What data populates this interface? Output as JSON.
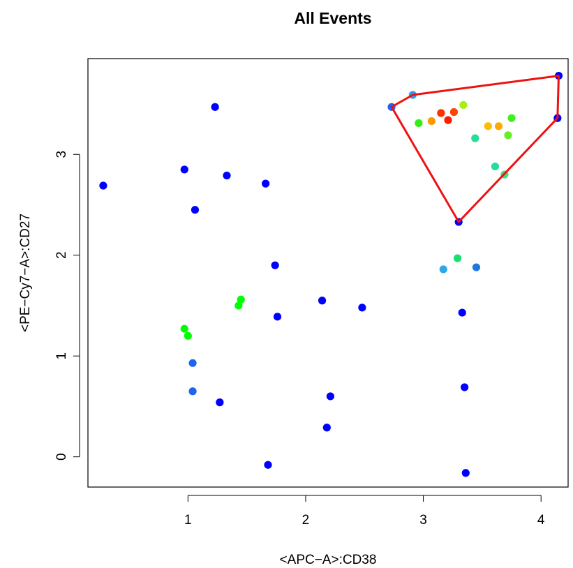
{
  "chart_data": {
    "type": "scatter",
    "title": "All Events",
    "xlabel": "<APC−A>:CD38",
    "ylabel": "<PE−Cy7−A>:CD27",
    "xlim": [
      0.15,
      4.23
    ],
    "ylim": [
      -0.3,
      3.95
    ],
    "xticks": [
      1,
      2,
      3,
      4
    ],
    "yticks": [
      0,
      1,
      2,
      3
    ],
    "grid": false,
    "legend": "none",
    "points": [
      {
        "x": 0.28,
        "y": 2.69,
        "color": "#0000ff"
      },
      {
        "x": 0.97,
        "y": 2.85,
        "color": "#0000ff"
      },
      {
        "x": 1.06,
        "y": 2.45,
        "color": "#0000ff"
      },
      {
        "x": 1.23,
        "y": 3.47,
        "color": "#0000ff"
      },
      {
        "x": 1.33,
        "y": 2.79,
        "color": "#0000ff"
      },
      {
        "x": 1.66,
        "y": 2.71,
        "color": "#0000ff"
      },
      {
        "x": 1.74,
        "y": 1.9,
        "color": "#0000ff"
      },
      {
        "x": 1.76,
        "y": 1.39,
        "color": "#0000ff"
      },
      {
        "x": 2.14,
        "y": 1.55,
        "color": "#0000ff"
      },
      {
        "x": 2.48,
        "y": 1.48,
        "color": "#0000ff"
      },
      {
        "x": 0.97,
        "y": 1.27,
        "color": "#00ff00"
      },
      {
        "x": 1.0,
        "y": 1.2,
        "color": "#00ff00"
      },
      {
        "x": 1.43,
        "y": 1.5,
        "color": "#00ff00"
      },
      {
        "x": 1.45,
        "y": 1.56,
        "color": "#00ff00"
      },
      {
        "x": 1.04,
        "y": 0.93,
        "color": "#1e64ee"
      },
      {
        "x": 1.04,
        "y": 0.65,
        "color": "#1e64ee"
      },
      {
        "x": 1.27,
        "y": 0.54,
        "color": "#0000ff"
      },
      {
        "x": 1.68,
        "y": -0.08,
        "color": "#0000ff"
      },
      {
        "x": 2.18,
        "y": 0.29,
        "color": "#0000ff"
      },
      {
        "x": 2.21,
        "y": 0.6,
        "color": "#0000ff"
      },
      {
        "x": 3.33,
        "y": 1.43,
        "color": "#0000ff"
      },
      {
        "x": 3.35,
        "y": 0.69,
        "color": "#0000ff"
      },
      {
        "x": 3.36,
        "y": -0.16,
        "color": "#0000ff"
      },
      {
        "x": 3.17,
        "y": 1.86,
        "color": "#2aa8e8"
      },
      {
        "x": 3.45,
        "y": 1.88,
        "color": "#1e78e0"
      },
      {
        "x": 3.29,
        "y": 1.97,
        "color": "#18e070"
      },
      {
        "x": 2.73,
        "y": 3.47,
        "color": "#1e64ee"
      },
      {
        "x": 2.91,
        "y": 3.59,
        "color": "#2a9ee6"
      },
      {
        "x": 2.96,
        "y": 3.31,
        "color": "#33ee11"
      },
      {
        "x": 3.07,
        "y": 3.33,
        "color": "#ff9900"
      },
      {
        "x": 3.15,
        "y": 3.41,
        "color": "#ff3300"
      },
      {
        "x": 3.21,
        "y": 3.34,
        "color": "#ff1a00"
      },
      {
        "x": 3.26,
        "y": 3.42,
        "color": "#ff4400"
      },
      {
        "x": 3.34,
        "y": 3.49,
        "color": "#aaee11"
      },
      {
        "x": 3.3,
        "y": 2.33,
        "color": "#0000ff"
      },
      {
        "x": 3.44,
        "y": 3.16,
        "color": "#26dd99"
      },
      {
        "x": 3.55,
        "y": 3.28,
        "color": "#ffbb00"
      },
      {
        "x": 3.61,
        "y": 2.88,
        "color": "#26dd99"
      },
      {
        "x": 3.64,
        "y": 3.28,
        "color": "#ffaa00"
      },
      {
        "x": 3.69,
        "y": 2.8,
        "color": "#44dd88"
      },
      {
        "x": 3.72,
        "y": 3.19,
        "color": "#66ee22"
      },
      {
        "x": 3.75,
        "y": 3.36,
        "color": "#44ee22"
      },
      {
        "x": 4.14,
        "y": 3.36,
        "color": "#0000ff"
      },
      {
        "x": 4.15,
        "y": 3.78,
        "color": "#0000ff"
      }
    ],
    "gate": {
      "color": "#ee1111",
      "vertices": [
        [
          2.73,
          3.47
        ],
        [
          2.91,
          3.59
        ],
        [
          4.15,
          3.78
        ],
        [
          4.14,
          3.36
        ],
        [
          3.3,
          2.33
        ]
      ]
    }
  }
}
